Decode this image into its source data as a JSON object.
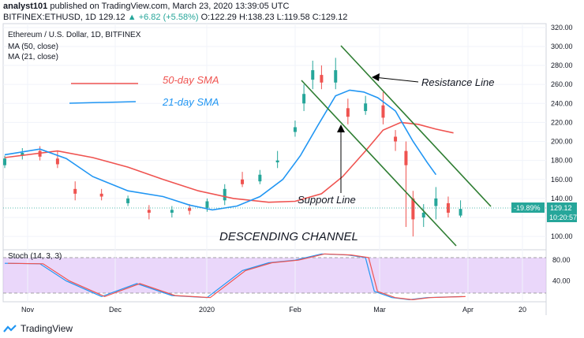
{
  "header": {
    "author": "analyst101",
    "published": "published on TradingView.com, March 23, 2020 13:39:05 UTC",
    "symbol": "BITFINEX:ETHUSD, 1D",
    "last": "129.12",
    "change": "+6.82 (+5.58%)",
    "o": "O:122.29",
    "h": "H:138.23",
    "l": "L:119.58",
    "c": "C:129.12"
  },
  "chart_title": "Ethereum / U.S. Dollar, 1D, BITFINEX",
  "legend_ma50": "MA (50, close)",
  "legend_ma21": "MA (21, close)",
  "annotations": {
    "sma50": "50-day SMA",
    "sma21": "21-day SMA",
    "resistance": "Resistance Line",
    "support": "Support Line",
    "channel": "DESCENDING CHANNEL"
  },
  "price_badge": "129.12",
  "pct_badge": "-19.89%",
  "time_badge": "10:20:57",
  "stoch_label": "Stoch (14, 3, 3)",
  "footer_brand": "TradingView",
  "colors": {
    "up": "#26a69a",
    "down": "#ef5350",
    "ma50": "#ef5350",
    "ma21": "#2196f3",
    "channel": "#2e7d32",
    "stoch_band": "#d9b6f5"
  },
  "chart_data": {
    "type": "candlestick",
    "x_ticks": [
      "Nov",
      "Dec",
      "2020",
      "Feb",
      "Mar",
      "Apr",
      "20"
    ],
    "y_ticks": [
      100,
      120,
      140,
      160,
      180,
      200,
      220,
      240,
      260,
      280,
      300,
      320
    ],
    "ylim": [
      86,
      324
    ],
    "stoch_ticks": [
      40,
      80
    ],
    "stoch_ylim": [
      0,
      100
    ],
    "ma50": [
      [
        0,
        183
      ],
      [
        30,
        190
      ],
      [
        50,
        183
      ],
      [
        70,
        173
      ],
      [
        90,
        160
      ],
      [
        110,
        148
      ],
      [
        130,
        140
      ],
      [
        150,
        136
      ],
      [
        165,
        137
      ],
      [
        180,
        145
      ],
      [
        192,
        163
      ],
      [
        205,
        190
      ],
      [
        215,
        212
      ],
      [
        225,
        220
      ],
      [
        235,
        218
      ],
      [
        245,
        213
      ],
      [
        255,
        209
      ]
    ],
    "ma21": [
      [
        0,
        186
      ],
      [
        20,
        192
      ],
      [
        35,
        182
      ],
      [
        50,
        163
      ],
      [
        70,
        148
      ],
      [
        90,
        142
      ],
      [
        105,
        133
      ],
      [
        118,
        128
      ],
      [
        132,
        132
      ],
      [
        145,
        142
      ],
      [
        158,
        160
      ],
      [
        168,
        185
      ],
      [
        178,
        217
      ],
      [
        188,
        248
      ],
      [
        196,
        254
      ],
      [
        204,
        252
      ],
      [
        212,
        246
      ],
      [
        222,
        232
      ],
      [
        232,
        200
      ],
      [
        240,
        178
      ],
      [
        245,
        165
      ]
    ],
    "candles_approx": [
      [
        0,
        175,
        182,
        172,
        185
      ],
      [
        10,
        185,
        188,
        181,
        193
      ],
      [
        20,
        190,
        184,
        180,
        195
      ],
      [
        30,
        182,
        176,
        172,
        190
      ],
      [
        40,
        150,
        145,
        138,
        158
      ],
      [
        55,
        145,
        142,
        138,
        150
      ],
      [
        70,
        135,
        140,
        132,
        143
      ],
      [
        82,
        128,
        125,
        118,
        133
      ],
      [
        95,
        125,
        128,
        120,
        132
      ],
      [
        105,
        130,
        127,
        123,
        134
      ],
      [
        115,
        130,
        137,
        126,
        140
      ],
      [
        125,
        138,
        150,
        133,
        155
      ],
      [
        135,
        160,
        155,
        152,
        168
      ],
      [
        145,
        158,
        165,
        155,
        170
      ],
      [
        155,
        178,
        180,
        172,
        190
      ],
      [
        165,
        210,
        215,
        205,
        222
      ],
      [
        170,
        240,
        250,
        232,
        260
      ],
      [
        175,
        265,
        275,
        255,
        285
      ],
      [
        180,
        270,
        262,
        255,
        280
      ],
      [
        188,
        262,
        275,
        255,
        288
      ],
      [
        195,
        235,
        226,
        218,
        245
      ],
      [
        205,
        232,
        240,
        228,
        248
      ],
      [
        215,
        238,
        225,
        218,
        252
      ],
      [
        222,
        205,
        200,
        190,
        212
      ],
      [
        228,
        190,
        175,
        110,
        200
      ],
      [
        232,
        140,
        118,
        100,
        148
      ],
      [
        238,
        120,
        125,
        110,
        134
      ],
      [
        245,
        132,
        140,
        118,
        152
      ],
      [
        252,
        135,
        125,
        120,
        142
      ],
      [
        259,
        122,
        129,
        120,
        138
      ]
    ],
    "stoch": [
      [
        0,
        74
      ],
      [
        20,
        73
      ],
      [
        35,
        40
      ],
      [
        55,
        10
      ],
      [
        75,
        35
      ],
      [
        95,
        12
      ],
      [
        115,
        8
      ],
      [
        135,
        60
      ],
      [
        150,
        75
      ],
      [
        165,
        80
      ],
      [
        180,
        92
      ],
      [
        195,
        90
      ],
      [
        205,
        85
      ],
      [
        210,
        20
      ],
      [
        220,
        8
      ],
      [
        230,
        4
      ],
      [
        240,
        8
      ],
      [
        260,
        10
      ]
    ]
  }
}
